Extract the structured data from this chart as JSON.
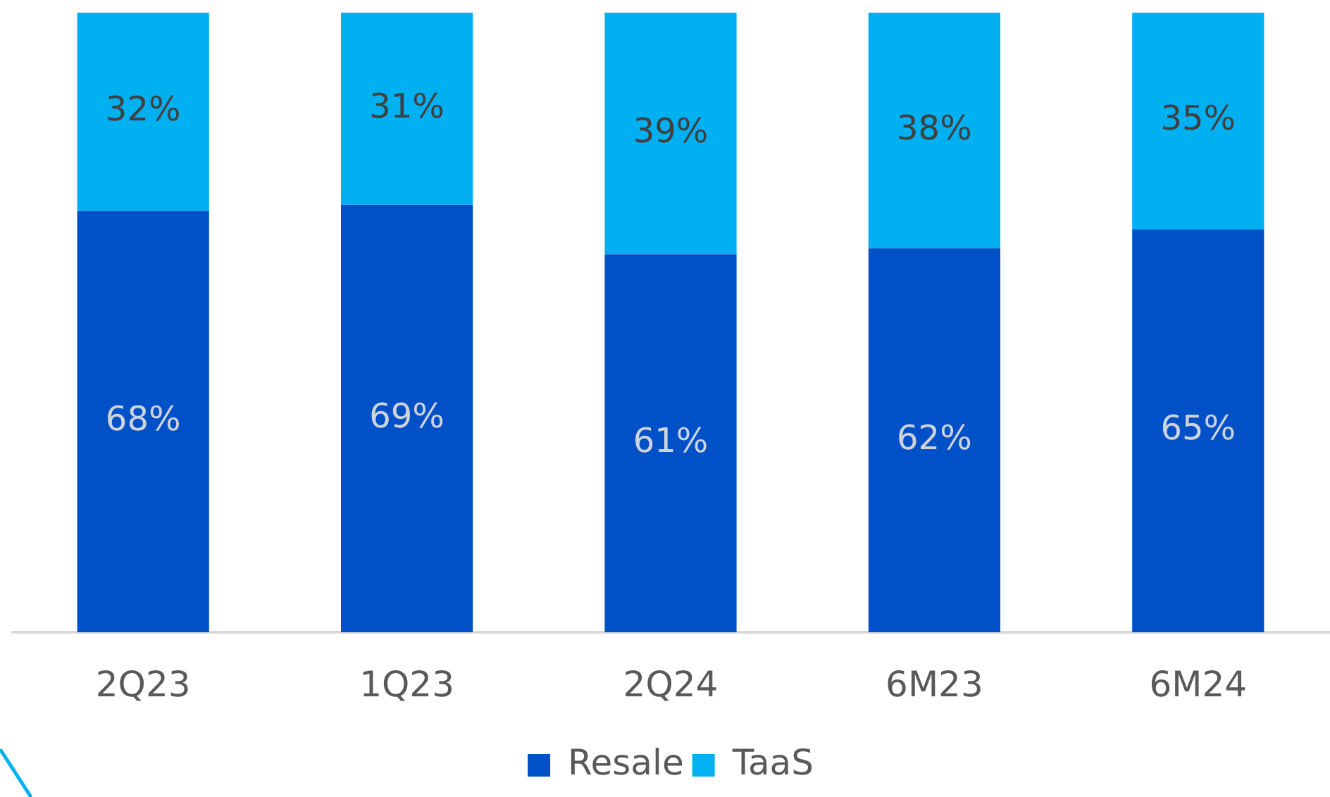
{
  "chart_data": {
    "type": "bar",
    "stacked": true,
    "categories": [
      "2Q23",
      "1Q23",
      "2Q24",
      "6M23",
      "6M24"
    ],
    "series": [
      {
        "name": "Resale",
        "color": "#0050c8",
        "values": [
          68,
          69,
          61,
          62,
          65
        ],
        "value_labels": [
          "68%",
          "69%",
          "61%",
          "62%",
          "65%"
        ]
      },
      {
        "name": "TaaS",
        "color": "#00b0f0",
        "values": [
          32,
          31,
          39,
          38,
          35
        ],
        "value_labels": [
          "32%",
          "31%",
          "39%",
          "38%",
          "35%"
        ]
      }
    ],
    "grid": false,
    "legend": "bottom"
  }
}
